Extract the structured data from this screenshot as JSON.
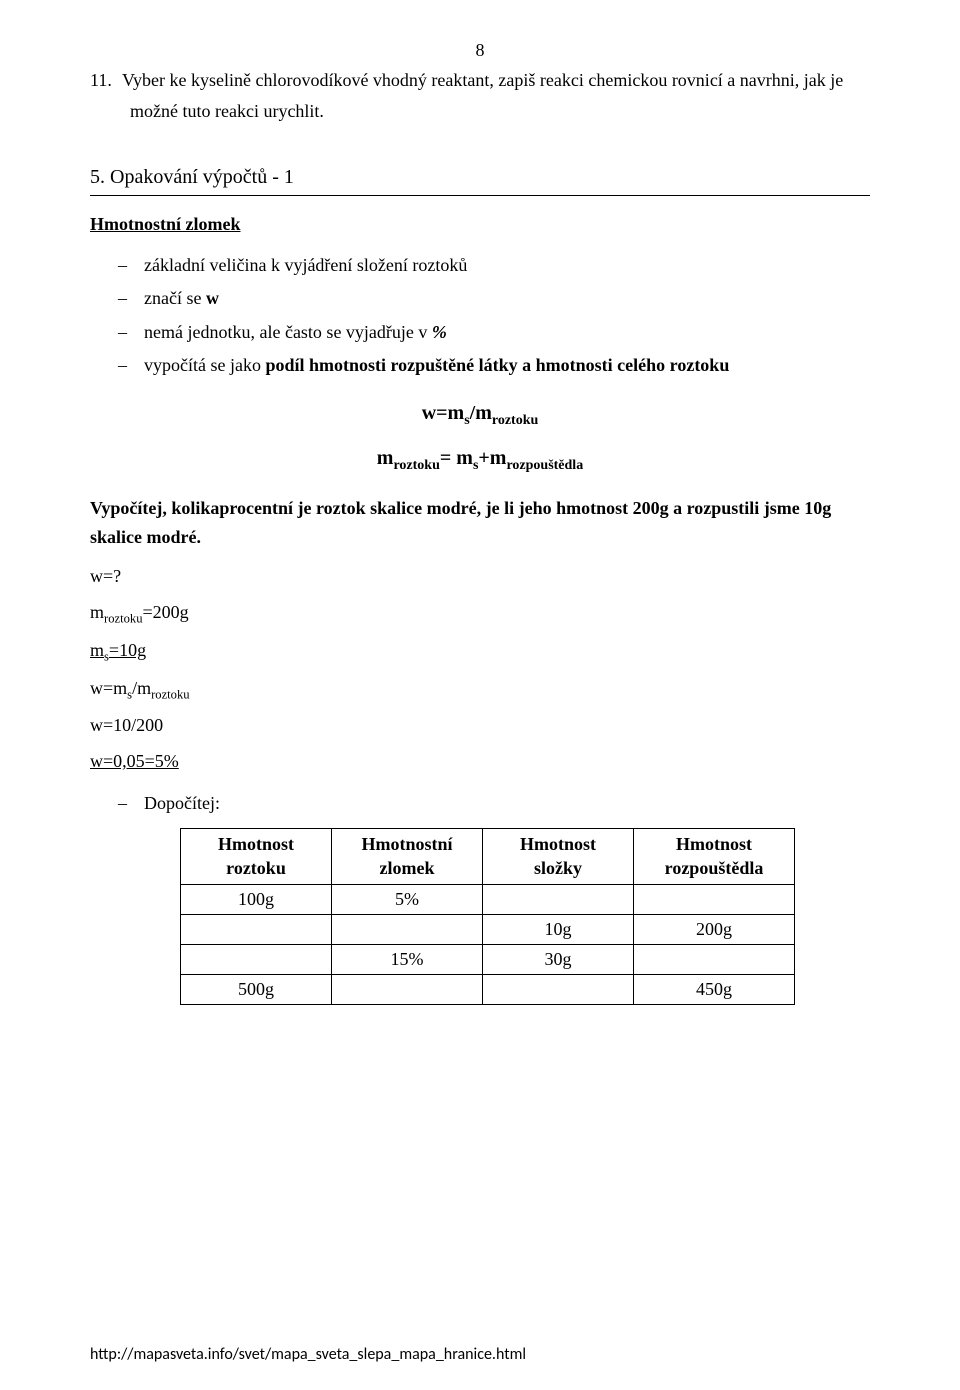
{
  "page_number": "8",
  "question": {
    "number": "11.",
    "line1": "Vyber ke kyselině chlorovodíkové vhodný reaktant, zapiš reakci chemickou rovnicí a navrhni, jak je",
    "line2": "možné tuto reakci urychlit."
  },
  "section": {
    "title": "5. Opakování výpočtů - 1",
    "subhead": "Hmotnostní zlomek",
    "bullets": {
      "b1": "základní veličina k vyjádření složení roztoků",
      "b2_pre": "značí se ",
      "b2_bold": "w",
      "b3_pre": "nemá jednotku, ale často se vyjadřuje v ",
      "b3_bold": "%",
      "b4_pre": "vypočítá se jako ",
      "b4_bold": "podíl hmotnosti rozpuštěné látky a hmotnosti celého roztoku"
    },
    "formula1": {
      "pre": "w=m",
      "sub1": "s",
      "mid": "/m",
      "sub2": "roztoku"
    },
    "formula2": {
      "p1": "m",
      "s1": "roztoku",
      "p2": "= m",
      "s2": "s",
      "p3": "+m",
      "s3": "rozpouštědla"
    },
    "example": "Vypočítej, kolikaprocentní je roztok skalice modré, je li jeho hmotnost 200g a rozpustili jsme 10g skalice modré.",
    "steps": {
      "s1": "w=?",
      "s2_p1": "m",
      "s2_s1": "roztoku",
      "s2_p2": "=200g",
      "s3_p1": "m",
      "s3_s1": "s",
      "s3_p2": "=10g",
      "s4_p1": " w=m",
      "s4_s1": "s",
      "s4_p2": "/m",
      "s4_s2": "roztoku",
      "s5": "w=10/200",
      "s6": "w=0,05=5%"
    },
    "dopoc": "Dopočítej:"
  },
  "table": {
    "headers": {
      "h1a": "Hmotnost",
      "h1b": "roztoku",
      "h2a": "Hmotnostní",
      "h2b": "zlomek",
      "h3a": "Hmotnost",
      "h3b": "složky",
      "h4a": "Hmotnost",
      "h4b": "rozpouštědla"
    },
    "col_widths": {
      "c1": "130px",
      "c2": "130px",
      "c3": "130px",
      "c4": "140px"
    },
    "rows": [
      {
        "c1": "100g",
        "c2": "5%",
        "c3": "",
        "c4": ""
      },
      {
        "c1": "",
        "c2": "",
        "c3": "10g",
        "c4": "200g"
      },
      {
        "c1": "",
        "c2": "15%",
        "c3": "30g",
        "c4": ""
      },
      {
        "c1": "500g",
        "c2": "",
        "c3": "",
        "c4": "450g"
      }
    ]
  },
  "footer_url": "http://mapasveta.info/svet/mapa_sveta_slepa_mapa_hranice.html"
}
